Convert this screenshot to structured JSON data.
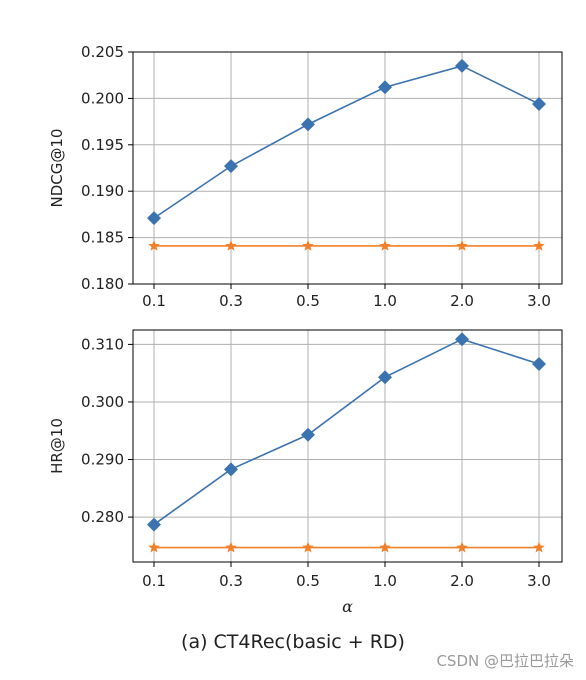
{
  "caption": "(a) CT4Rec(basic + RD)",
  "watermark": "CSDN @巴拉巴拉朵",
  "colors": {
    "series_main": "#3b73b0",
    "series_baseline": "#f0812a",
    "grid": "#b0b0b0"
  },
  "chart_data": [
    {
      "type": "line",
      "categories": [
        "0.1",
        "0.3",
        "0.5",
        "1.0",
        "2.0",
        "3.0"
      ],
      "ylabel": "NDCG@10",
      "xlabel": "",
      "ylim": [
        0.18,
        0.205
      ],
      "yticks": [
        "0.180",
        "0.185",
        "0.190",
        "0.195",
        "0.200",
        "0.205"
      ],
      "grid": true,
      "series": [
        {
          "values": [
            0.1871,
            0.1927,
            0.1972,
            0.2012,
            0.2035,
            0.1994
          ],
          "marker": "diamond",
          "color": "#3b73b0"
        },
        {
          "values": [
            0.1841,
            0.1841,
            0.1841,
            0.1841,
            0.1841,
            0.1841
          ],
          "marker": "star",
          "color": "#f0812a"
        }
      ]
    },
    {
      "type": "line",
      "categories": [
        "0.1",
        "0.3",
        "0.5",
        "1.0",
        "2.0",
        "3.0"
      ],
      "ylabel": "HR@10",
      "xlabel": "α",
      "ylim": [
        0.2722,
        0.3125
      ],
      "yticks": [
        "0.280",
        "0.290",
        "0.300",
        "0.310"
      ],
      "grid": true,
      "series": [
        {
          "values": [
            0.2787,
            0.2883,
            0.2943,
            0.3043,
            0.3109,
            0.3066
          ],
          "marker": "diamond",
          "color": "#3b73b0"
        },
        {
          "values": [
            0.2747,
            0.2747,
            0.2747,
            0.2747,
            0.2747,
            0.2747
          ],
          "marker": "star",
          "color": "#f0812a"
        }
      ]
    }
  ]
}
